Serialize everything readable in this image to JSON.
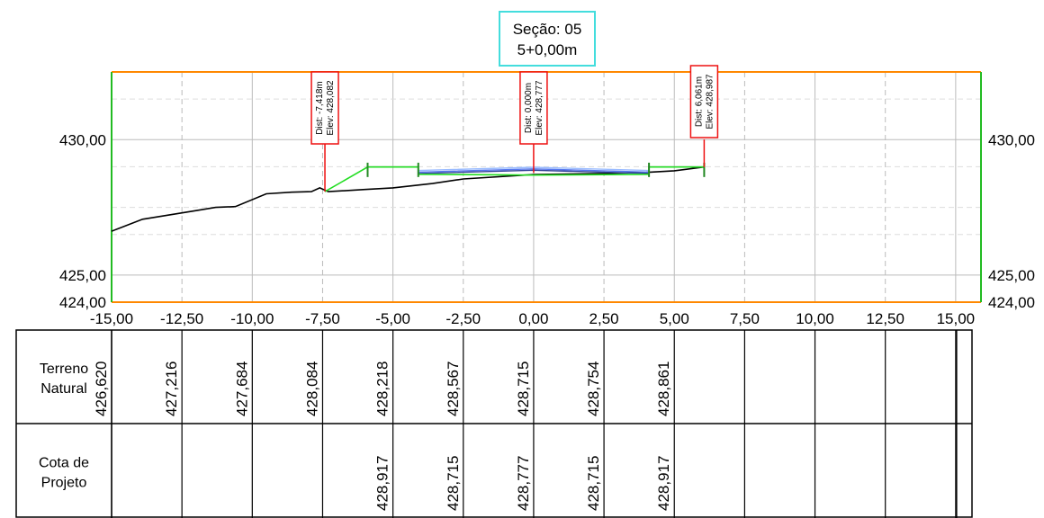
{
  "title": {
    "line1": "Seção: 05",
    "line2": "5+0,00m"
  },
  "chart_data": {
    "type": "line",
    "x_range": [
      -15,
      15.9
    ],
    "y_range": [
      424,
      432.5
    ],
    "x_ticks": [
      -15,
      -12.5,
      -10,
      -7.5,
      -5,
      -2.5,
      0,
      2.5,
      5,
      7.5,
      10,
      12.5,
      15
    ],
    "x_tick_labels": [
      "-15,00",
      "-12,50",
      "-10,00",
      "-7,50",
      "-5,00",
      "-2,50",
      "0,00",
      "2,50",
      "5,00",
      "7,50",
      "10,00",
      "12,50",
      "15,00"
    ],
    "y_labels": [
      {
        "value": 430,
        "label": "430,00"
      },
      {
        "value": 425,
        "label": "425,00"
      },
      {
        "value": 424,
        "label": "424,00"
      }
    ],
    "grid": true,
    "colors": {
      "terrain": "#000000",
      "design": "#22dd22",
      "pavement": "#5577ee",
      "top_frame": "#ff8800",
      "side_frame": "#22bb22",
      "marker": "#ee1111",
      "title_border": "#44dddd",
      "grid": "#bbbbbb"
    },
    "terrain": [
      {
        "x": -15.0,
        "y": 426.62
      },
      {
        "x": -13.9,
        "y": 427.06
      },
      {
        "x": -12.0,
        "y": 427.38
      },
      {
        "x": -11.3,
        "y": 427.5
      },
      {
        "x": -10.6,
        "y": 427.53
      },
      {
        "x": -9.5,
        "y": 428.0
      },
      {
        "x": -8.6,
        "y": 428.06
      },
      {
        "x": -7.9,
        "y": 428.08
      },
      {
        "x": -7.6,
        "y": 428.22
      },
      {
        "x": -7.3,
        "y": 428.08
      },
      {
        "x": -6.0,
        "y": 428.16
      },
      {
        "x": -5.0,
        "y": 428.22
      },
      {
        "x": -3.6,
        "y": 428.38
      },
      {
        "x": -2.5,
        "y": 428.55
      },
      {
        "x": 0.0,
        "y": 428.71
      },
      {
        "x": 2.5,
        "y": 428.75
      },
      {
        "x": 4.0,
        "y": 428.79
      },
      {
        "x": 5.0,
        "y": 428.85
      },
      {
        "x": 6.06,
        "y": 428.99
      }
    ],
    "design_line": [
      {
        "x": -7.418,
        "y": 428.08
      },
      {
        "x": -5.9,
        "y": 428.99
      },
      {
        "x": -4.1,
        "y": 428.99
      },
      {
        "x": -4.1,
        "y": 428.72
      },
      {
        "x": 0.0,
        "y": 428.69
      },
      {
        "x": 4.1,
        "y": 428.72
      },
      {
        "x": 4.1,
        "y": 428.99
      },
      {
        "x": 6.061,
        "y": 428.99
      }
    ],
    "pavement_layers": [
      [
        {
          "x": -4.1,
          "y": 428.86
        },
        {
          "x": 0.0,
          "y": 428.98
        },
        {
          "x": 4.1,
          "y": 428.86
        }
      ],
      [
        {
          "x": -4.1,
          "y": 428.8
        },
        {
          "x": 0.0,
          "y": 428.92
        },
        {
          "x": 4.1,
          "y": 428.8
        }
      ],
      [
        {
          "x": -4.1,
          "y": 428.75
        },
        {
          "x": 0.0,
          "y": 428.87
        },
        {
          "x": 4.1,
          "y": 428.75
        }
      ]
    ],
    "markers": [
      {
        "x": -7.418,
        "y": 428.082,
        "dist": "Dist: -7,418m",
        "elev": "Elev: 428,082"
      },
      {
        "x": 0.0,
        "y": 428.777,
        "dist": "Dist: 0,000m",
        "elev": "Elev: 428,777"
      },
      {
        "x": 6.061,
        "y": 428.987,
        "dist": "Dist: 6,061m",
        "elev": "Elev: 428,987"
      }
    ],
    "table": {
      "rows": [
        {
          "label_lines": [
            "Terreno",
            "Natural"
          ],
          "values": [
            "426,620",
            "427,216",
            "427,684",
            "428,084",
            "428,218",
            "428,567",
            "428,715",
            "428,754",
            "428,861",
            "",
            "",
            "",
            ""
          ]
        },
        {
          "label_lines": [
            "Cota de",
            "Projeto"
          ],
          "values": [
            "",
            "",
            "",
            "",
            "428,917",
            "428,715",
            "428,777",
            "428,715",
            "428,917",
            "",
            "",
            "",
            ""
          ]
        }
      ]
    }
  }
}
